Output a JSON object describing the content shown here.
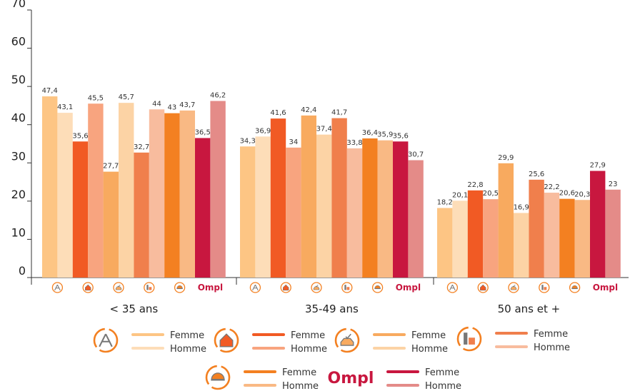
{
  "chart_data": {
    "type": "bar",
    "title": "",
    "xlabel": "",
    "ylabel": "",
    "ylim": [
      0,
      70
    ],
    "yticks": [
      "0",
      "10",
      "20",
      "30",
      "40",
      "50",
      "60",
      "70"
    ],
    "grid": false,
    "legend_position": "bottom",
    "categories": [
      "< 35 ans",
      "35-49 ans",
      "50 ans et +"
    ],
    "groups": [
      {
        "icon": "architecture-icon",
        "colors": {
          "Femme": "#FDC584",
          "Homme": "#FDDDB8"
        }
      },
      {
        "icon": "house-icon",
        "colors": {
          "Femme": "#F15A24",
          "Homme": "#F8A47F"
        }
      },
      {
        "icon": "vehicle-check-icon",
        "colors": {
          "Femme": "#F8AA5F",
          "Homme": "#FCD3A5"
        }
      },
      {
        "icon": "industrial-icon",
        "colors": {
          "Femme": "#F07F4C",
          "Homme": "#F8BC9E"
        }
      },
      {
        "icon": "helmet-icon",
        "colors": {
          "Femme": "#F38021",
          "Homme": "#F9B984"
        }
      },
      {
        "icon": "ompl-logo",
        "logo_text": "Ompl",
        "colors": {
          "Femme": "#C8173F",
          "Homme": "#E48B88"
        }
      }
    ],
    "series_labels": [
      "Femme",
      "Homme"
    ],
    "values": [
      [
        [
          47.4,
          43.1
        ],
        [
          35.6,
          45.5
        ],
        [
          27.7,
          45.7
        ],
        [
          32.7,
          44
        ],
        [
          43,
          43.7
        ],
        [
          36.5,
          46.2
        ]
      ],
      [
        [
          34.3,
          36.9
        ],
        [
          41.6,
          34
        ],
        [
          42.4,
          37.4
        ],
        [
          41.7,
          33.8
        ],
        [
          36.4,
          35.9
        ],
        [
          35.6,
          30.7
        ]
      ],
      [
        [
          18.2,
          20.1
        ],
        [
          22.8,
          20.5
        ],
        [
          29.9,
          16.9
        ],
        [
          25.6,
          22.2
        ],
        [
          20.6,
          20.3
        ],
        [
          27.9,
          23
        ]
      ]
    ],
    "value_labels": [
      [
        [
          "47,4",
          "43,1"
        ],
        [
          "35,6",
          "45,5"
        ],
        [
          "27,7",
          "45,7"
        ],
        [
          "32,7",
          "44"
        ],
        [
          "43",
          "43,7"
        ],
        [
          "36,5",
          "46,2"
        ]
      ],
      [
        [
          "34,3",
          "36,9"
        ],
        [
          "41,6",
          "34"
        ],
        [
          "42,4",
          "37,4"
        ],
        [
          "41,7",
          "33,8"
        ],
        [
          "36,4",
          "35,9"
        ],
        [
          "35,6",
          "30,7"
        ]
      ],
      [
        [
          "18,2",
          "20,1"
        ],
        [
          "22,8",
          "20,5"
        ],
        [
          "29,9",
          "16,9"
        ],
        [
          "25,6",
          "22,2"
        ],
        [
          "20,6",
          "20,3"
        ],
        [
          "27,9",
          "23"
        ]
      ]
    ]
  }
}
